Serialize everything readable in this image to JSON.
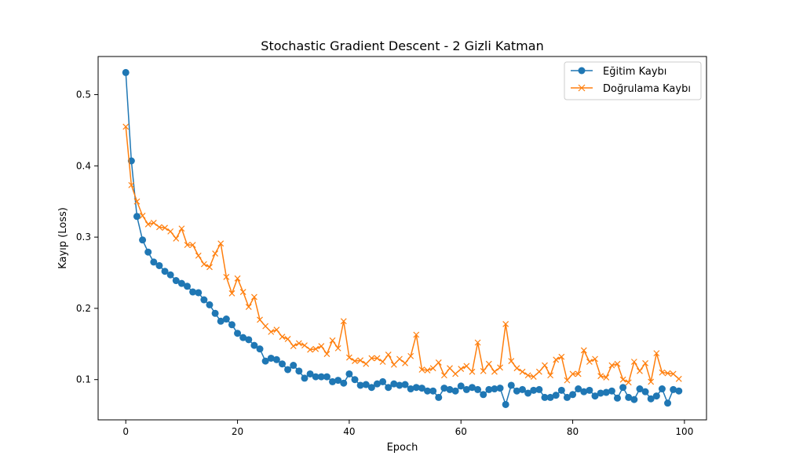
{
  "chart_data": {
    "type": "line",
    "title": "Stochastic Gradient Descent - 2 Gizli Katman",
    "xlabel": "Epoch",
    "ylabel": "Kayıp (Loss)",
    "xlim": [
      -4.95,
      103.95
    ],
    "ylim": [
      0.0435,
      0.5535
    ],
    "xticks": [
      0,
      20,
      40,
      60,
      80,
      100
    ],
    "xtick_labels": [
      "0",
      "20",
      "40",
      "60",
      "80",
      "100"
    ],
    "yticks": [
      0.1,
      0.2,
      0.3,
      0.4,
      0.5
    ],
    "ytick_labels": [
      "0.1",
      "0.2",
      "0.3",
      "0.4",
      "0.5"
    ],
    "grid": false,
    "legend_position": "top-right",
    "x": [
      0,
      1,
      2,
      3,
      4,
      5,
      6,
      7,
      8,
      9,
      10,
      11,
      12,
      13,
      14,
      15,
      16,
      17,
      18,
      19,
      20,
      21,
      22,
      23,
      24,
      25,
      26,
      27,
      28,
      29,
      30,
      31,
      32,
      33,
      34,
      35,
      36,
      37,
      38,
      39,
      40,
      41,
      42,
      43,
      44,
      45,
      46,
      47,
      48,
      49,
      50,
      51,
      52,
      53,
      54,
      55,
      56,
      57,
      58,
      59,
      60,
      61,
      62,
      63,
      64,
      65,
      66,
      67,
      68,
      69,
      70,
      71,
      72,
      73,
      74,
      75,
      76,
      77,
      78,
      79,
      80,
      81,
      82,
      83,
      84,
      85,
      86,
      87,
      88,
      89,
      90,
      91,
      92,
      93,
      94,
      95,
      96,
      97,
      98,
      99
    ],
    "series": [
      {
        "name": "Eğitim Kaybı",
        "color": "#1f77b4",
        "marker": "circle",
        "values": [
          0.531,
          0.407,
          0.329,
          0.296,
          0.279,
          0.265,
          0.26,
          0.252,
          0.247,
          0.239,
          0.235,
          0.231,
          0.223,
          0.222,
          0.212,
          0.205,
          0.193,
          0.182,
          0.185,
          0.177,
          0.165,
          0.159,
          0.156,
          0.148,
          0.143,
          0.126,
          0.13,
          0.128,
          0.122,
          0.114,
          0.12,
          0.112,
          0.102,
          0.108,
          0.104,
          0.104,
          0.104,
          0.097,
          0.099,
          0.095,
          0.108,
          0.1,
          0.092,
          0.093,
          0.089,
          0.094,
          0.097,
          0.089,
          0.094,
          0.092,
          0.093,
          0.087,
          0.089,
          0.088,
          0.084,
          0.084,
          0.075,
          0.088,
          0.086,
          0.084,
          0.091,
          0.086,
          0.089,
          0.086,
          0.079,
          0.086,
          0.087,
          0.088,
          0.065,
          0.092,
          0.084,
          0.086,
          0.081,
          0.085,
          0.086,
          0.075,
          0.075,
          0.078,
          0.085,
          0.075,
          0.079,
          0.087,
          0.083,
          0.085,
          0.077,
          0.081,
          0.082,
          0.084,
          0.074,
          0.089,
          0.075,
          0.072,
          0.087,
          0.083,
          0.073,
          0.077,
          0.087,
          0.067,
          0.086,
          0.084
        ]
      },
      {
        "name": "Doğrulama Kaybı",
        "color": "#ff7f0e",
        "marker": "x",
        "values": [
          0.455,
          0.373,
          0.35,
          0.33,
          0.318,
          0.32,
          0.314,
          0.313,
          0.308,
          0.298,
          0.312,
          0.289,
          0.289,
          0.274,
          0.262,
          0.258,
          0.277,
          0.291,
          0.244,
          0.221,
          0.242,
          0.223,
          0.202,
          0.216,
          0.184,
          0.175,
          0.167,
          0.17,
          0.16,
          0.157,
          0.147,
          0.151,
          0.148,
          0.142,
          0.143,
          0.147,
          0.136,
          0.155,
          0.144,
          0.182,
          0.131,
          0.126,
          0.127,
          0.122,
          0.13,
          0.13,
          0.125,
          0.135,
          0.121,
          0.129,
          0.123,
          0.133,
          0.163,
          0.114,
          0.113,
          0.116,
          0.124,
          0.106,
          0.116,
          0.108,
          0.115,
          0.119,
          0.111,
          0.152,
          0.112,
          0.122,
          0.111,
          0.117,
          0.178,
          0.126,
          0.116,
          0.111,
          0.106,
          0.104,
          0.111,
          0.12,
          0.106,
          0.128,
          0.132,
          0.099,
          0.108,
          0.108,
          0.141,
          0.125,
          0.129,
          0.105,
          0.103,
          0.12,
          0.122,
          0.1,
          0.096,
          0.125,
          0.112,
          0.123,
          0.097,
          0.137,
          0.11,
          0.109,
          0.108,
          0.101
        ]
      }
    ]
  }
}
